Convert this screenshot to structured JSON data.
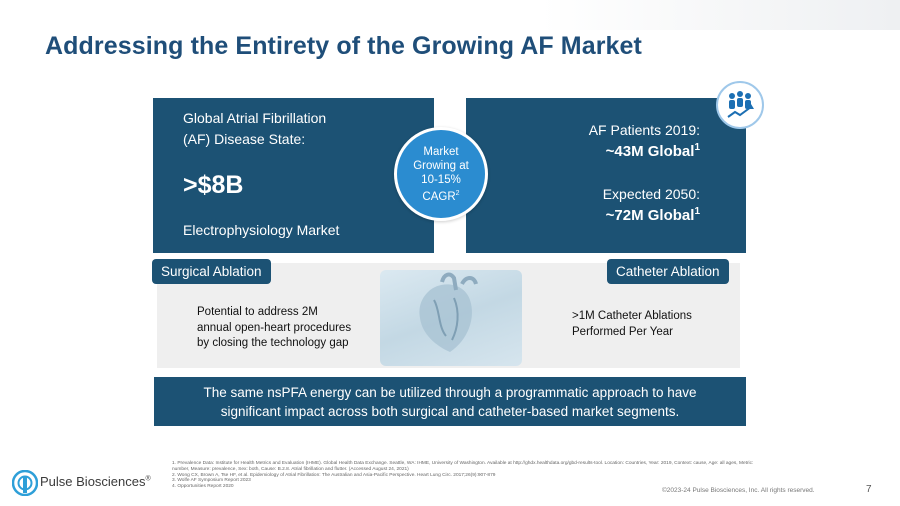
{
  "slide": {
    "title": "Addressing the Entirety of the Growing AF Market",
    "page_number": "7",
    "copyright": "©2023-24 Pulse Biosciences, Inc. All rights reserved."
  },
  "left_panel": {
    "line1": "Global Atrial Fibrillation",
    "line2": "(AF) Disease State:",
    "value": ">$8B",
    "subtitle": "Electrophysiology Market"
  },
  "right_panel": {
    "label1": "AF Patients 2019:",
    "value1": "~43M Global",
    "value1_sup": "1",
    "label2": "Expected 2050:",
    "value2": "~72M Global",
    "value2_sup": "1"
  },
  "circle": {
    "line1": "Market",
    "line2": "Growing at",
    "line3": "10-15%",
    "line4": "CAGR",
    "line4_sup": "2"
  },
  "segments": {
    "surgical_label": "Surgical Ablation",
    "catheter_label": "Catheter Ablation",
    "surgical_desc": [
      "Potential to address 2M",
      "annual open-heart procedures",
      "by closing the technology gap"
    ],
    "catheter_desc": [
      ">1M Catheter Ablations",
      "Performed Per Year"
    ]
  },
  "banner": {
    "line1": "The same nsPFA energy can be utilized through a programmatic approach to have",
    "line2": "significant impact across both surgical and catheter-based market segments."
  },
  "footer": {
    "logo_text": "Pulse Biosciences",
    "logo_mark": "®",
    "references": [
      "1.   Prevalence Data: Institute for Health Metrics and Evaluation (IHME). Global Health Data Exchange. Seattle, WA: IHME, University of Washington. Available at http://ghdx.healthdata.org/gbd-results-tool. Location: Countries, Year: 2019, Context: cause, Age: all ages, Metric:",
      "      number, Measure: prevalence, Sex: both, Cause: B.2.8. Atrial fibrillation and flutter. (Accessed August 24, 2021)",
      "2.   Wong CX, Brown A, Tse HF, et al. Epidemiology of Atrial Fibrillation: The Australian and Asia-Pacific Perspective. Heart Lung Circ. 2017;26(9):907-879",
      "3.   Wolfe AF Symposium Report 2023",
      "4.   Opportunities Report 2020"
    ]
  },
  "icons": {
    "people": "people-growth-icon",
    "heart": "heart-image",
    "logo": "pulse-logo-icon"
  },
  "colors": {
    "title": "#1f4e79",
    "panel": "#1c5274",
    "circle": "#2b8cd0",
    "band": "#efefef"
  }
}
